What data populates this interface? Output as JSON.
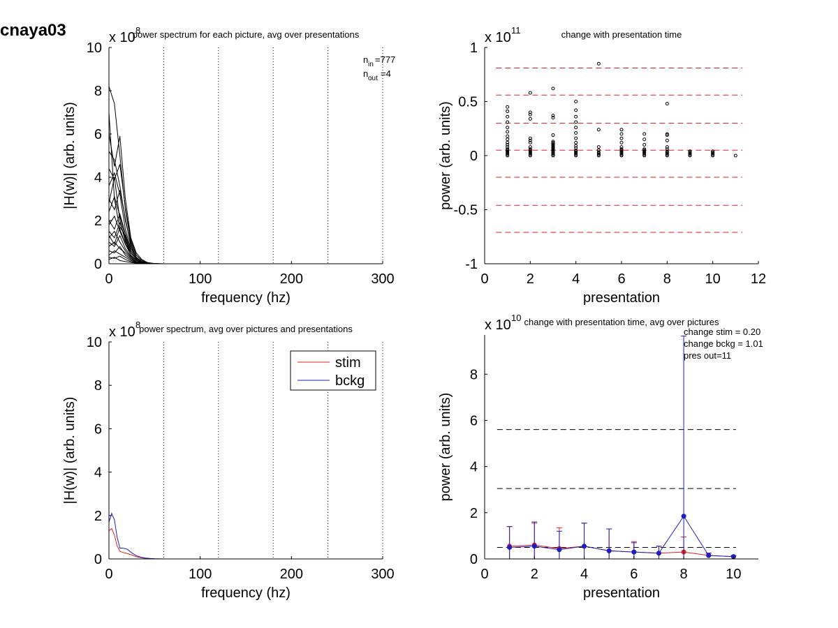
{
  "figure_title": "cnaya03",
  "chart_data": [
    {
      "id": "p1",
      "type": "line",
      "title": "power spectrum for each picture, avg over presentations",
      "xlabel": "frequency (hz)",
      "ylabel": "|H(w)| (arb. units)",
      "exponent": "x 10^8",
      "exp_base": "x 10",
      "exp_power": "8",
      "xlim": [
        0,
        300
      ],
      "ylim": [
        0,
        10
      ],
      "xticks": [
        0,
        100,
        200,
        300
      ],
      "yticks": [
        0,
        2,
        4,
        6,
        8,
        10
      ],
      "vlines": [
        60,
        120,
        180,
        240,
        300
      ],
      "annotation": {
        "n_in": "777",
        "n_out": "4",
        "n_in_label": "n",
        "n_in_sub": "in",
        "n_out_label": "n",
        "n_out_sub": "out"
      },
      "freq": [
        0,
        6,
        12,
        18,
        24,
        30,
        36,
        42,
        48,
        54,
        60,
        300
      ],
      "series_desc": "many picture spectra (black), peaks up to ~8.2 near 0-15 Hz, decaying to ~0 by 50 Hz",
      "series": [
        {
          "values": [
            8.2,
            7.4,
            5.0,
            2.5,
            1.0,
            0.4,
            0.15,
            0.05,
            0.02,
            0.01,
            0.0,
            0.0
          ]
        },
        {
          "values": [
            6.0,
            4.5,
            5.9,
            3.0,
            1.2,
            0.5,
            0.2,
            0.06,
            0.02,
            0.01,
            0.0,
            0.0
          ]
        },
        {
          "values": [
            5.2,
            4.8,
            3.6,
            2.0,
            0.9,
            0.3,
            0.1,
            0.04,
            0.01,
            0.0,
            0.0,
            0.0
          ]
        },
        {
          "values": [
            4.4,
            3.9,
            4.6,
            2.6,
            1.1,
            0.4,
            0.15,
            0.05,
            0.02,
            0.0,
            0.0,
            0.0
          ]
        },
        {
          "values": [
            3.6,
            4.2,
            3.2,
            1.6,
            0.7,
            0.3,
            0.1,
            0.03,
            0.01,
            0.0,
            0.0,
            0.0
          ]
        },
        {
          "values": [
            3.0,
            2.5,
            3.4,
            2.1,
            0.8,
            0.3,
            0.1,
            0.03,
            0.01,
            0.0,
            0.0,
            0.0
          ]
        },
        {
          "values": [
            2.4,
            3.1,
            2.2,
            1.2,
            0.5,
            0.2,
            0.08,
            0.02,
            0.01,
            0.0,
            0.0,
            0.0
          ]
        },
        {
          "values": [
            2.0,
            1.6,
            2.3,
            1.4,
            0.6,
            0.25,
            0.1,
            0.03,
            0.01,
            0.0,
            0.0,
            0.0
          ]
        },
        {
          "values": [
            1.8,
            2.2,
            1.5,
            0.9,
            0.4,
            0.15,
            0.06,
            0.02,
            0.0,
            0.0,
            0.0,
            0.0
          ]
        },
        {
          "values": [
            1.5,
            1.2,
            1.9,
            1.1,
            0.5,
            0.2,
            0.07,
            0.02,
            0.0,
            0.0,
            0.0,
            0.0
          ]
        },
        {
          "values": [
            1.2,
            1.5,
            1.0,
            0.6,
            0.3,
            0.1,
            0.05,
            0.01,
            0.0,
            0.0,
            0.0,
            0.0
          ]
        },
        {
          "values": [
            1.0,
            0.8,
            1.3,
            0.7,
            0.35,
            0.15,
            0.05,
            0.02,
            0.0,
            0.0,
            0.0,
            0.0
          ]
        },
        {
          "values": [
            0.8,
            1.0,
            0.7,
            0.5,
            0.25,
            0.1,
            0.04,
            0.01,
            0.0,
            0.0,
            0.0,
            0.0
          ]
        },
        {
          "values": [
            0.6,
            0.5,
            0.8,
            0.4,
            0.2,
            0.08,
            0.03,
            0.01,
            0.0,
            0.0,
            0.0,
            0.0
          ]
        },
        {
          "values": [
            0.4,
            0.6,
            0.45,
            0.3,
            0.15,
            0.06,
            0.02,
            0.01,
            0.0,
            0.0,
            0.0,
            0.0
          ]
        },
        {
          "values": [
            0.3,
            0.25,
            0.35,
            0.2,
            0.1,
            0.05,
            0.02,
            0.0,
            0.0,
            0.0,
            0.0,
            0.0
          ]
        },
        {
          "values": [
            0.2,
            0.3,
            0.15,
            0.1,
            0.06,
            0.03,
            0.01,
            0.0,
            0.0,
            0.0,
            0.0,
            0.0
          ]
        },
        {
          "values": [
            7.0,
            3.0,
            1.6,
            0.9,
            0.5,
            0.2,
            0.08,
            0.02,
            0.01,
            0.0,
            0.0,
            0.0
          ]
        },
        {
          "values": [
            2.8,
            4.0,
            2.0,
            1.0,
            0.5,
            0.2,
            0.06,
            0.02,
            0.0,
            0.0,
            0.0,
            0.0
          ]
        },
        {
          "values": [
            1.3,
            0.9,
            1.7,
            1.3,
            0.6,
            0.25,
            0.1,
            0.03,
            0.01,
            0.0,
            0.0,
            0.0
          ]
        }
      ]
    },
    {
      "id": "p2",
      "type": "scatter",
      "title": "change with presentation time",
      "xlabel": "presentation",
      "ylabel": "power (arb. units)",
      "exponent": "x 10^11",
      "exp_base": "x 10",
      "exp_power": "11",
      "xlim": [
        0,
        12
      ],
      "ylim": [
        -1,
        1
      ],
      "xticks": [
        0,
        2,
        4,
        6,
        8,
        10,
        12
      ],
      "yticks": [
        -1,
        -0.5,
        0,
        0.5,
        1
      ],
      "ytick_labels": [
        "-1",
        "-0.5",
        "0",
        "0.5",
        "1"
      ],
      "hlines": [
        0.81,
        0.56,
        0.3,
        0.05,
        -0.2,
        -0.46,
        -0.71
      ],
      "hline_color": "#e0201e",
      "points": [
        {
          "x": 1,
          "y": [
            0.45,
            0.41,
            0.36,
            0.31,
            0.26,
            0.22,
            0.18,
            0.15,
            0.12,
            0.1,
            0.08,
            0.06,
            0.05,
            0.04,
            0.03,
            0.02,
            0.01,
            0.0
          ]
        },
        {
          "x": 2,
          "y": [
            0.58,
            0.4,
            0.38,
            0.34,
            0.16,
            0.14,
            0.12,
            0.08,
            0.06,
            0.05,
            0.04,
            0.03,
            0.02,
            0.01,
            0.0
          ]
        },
        {
          "x": 3,
          "y": [
            0.62,
            0.37,
            0.35,
            0.19,
            0.13,
            0.12,
            0.11,
            0.1,
            0.09,
            0.08,
            0.07,
            0.06,
            0.05,
            0.04,
            0.03,
            0.02,
            0.01,
            0.0
          ]
        },
        {
          "x": 4,
          "y": [
            0.5,
            0.42,
            0.36,
            0.31,
            0.26,
            0.21,
            0.16,
            0.12,
            0.09,
            0.07,
            0.05,
            0.04,
            0.03,
            0.02,
            0.01,
            0.0
          ]
        },
        {
          "x": 5,
          "y": [
            0.85,
            0.24,
            0.08,
            0.05,
            0.03,
            0.02,
            0.01,
            0.0
          ]
        },
        {
          "x": 6,
          "y": [
            0.24,
            0.2,
            0.16,
            0.12,
            0.08,
            0.06,
            0.05,
            0.04,
            0.03,
            0.02,
            0.01,
            0.0
          ]
        },
        {
          "x": 7,
          "y": [
            0.2,
            0.15,
            0.1,
            0.06,
            0.05,
            0.04,
            0.03,
            0.02,
            0.01,
            0.0
          ]
        },
        {
          "x": 8,
          "y": [
            0.48,
            0.2,
            0.19,
            0.14,
            0.08,
            0.06,
            0.04,
            0.03,
            0.02,
            0.01,
            0.0
          ]
        },
        {
          "x": 9,
          "y": [
            0.04,
            0.03,
            0.02,
            0.01,
            0.0
          ]
        },
        {
          "x": 10,
          "y": [
            0.04,
            0.03,
            0.02,
            0.01,
            0.0
          ]
        },
        {
          "x": 11,
          "y": [
            0.0
          ]
        }
      ]
    },
    {
      "id": "p3",
      "type": "line",
      "title": "power spectrum, avg over pictures and presentations",
      "xlabel": "frequency (hz)",
      "ylabel": "|H(w)| (arb. units)",
      "exponent": "x 10^8",
      "exp_base": "x 10",
      "exp_power": "8",
      "xlim": [
        0,
        300
      ],
      "ylim": [
        0,
        10
      ],
      "xticks": [
        0,
        100,
        200,
        300
      ],
      "yticks": [
        0,
        2,
        4,
        6,
        8,
        10
      ],
      "vlines": [
        60,
        120,
        180,
        240,
        300
      ],
      "legend": {
        "position": "top-right"
      },
      "series": [
        {
          "name": "stim",
          "color": "#e0201e",
          "x": [
            0,
            3,
            6,
            9,
            12,
            15,
            20,
            25,
            30,
            35,
            40,
            45,
            50,
            60,
            300
          ],
          "values": [
            1.3,
            1.4,
            1.1,
            0.6,
            0.35,
            0.3,
            0.25,
            0.18,
            0.1,
            0.06,
            0.03,
            0.02,
            0.01,
            0.0,
            0.0
          ]
        },
        {
          "name": "bckg",
          "color": "#1f1fbf",
          "x": [
            0,
            3,
            6,
            9,
            12,
            15,
            20,
            25,
            30,
            35,
            40,
            45,
            50,
            60,
            300
          ],
          "values": [
            1.7,
            2.1,
            1.8,
            1.0,
            0.5,
            0.5,
            0.45,
            0.28,
            0.15,
            0.08,
            0.04,
            0.02,
            0.01,
            0.0,
            0.0
          ]
        }
      ]
    },
    {
      "id": "p4",
      "type": "line",
      "title": "change with presentation time, avg over pictures",
      "xlabel": "presentation",
      "ylabel": "power (arb. units)",
      "exponent": "x 10^10",
      "exp_base": "x 10",
      "exp_power": "10",
      "xlim": [
        0,
        11
      ],
      "ylim": [
        0,
        9.7
      ],
      "xticks": [
        0,
        2,
        4,
        6,
        8,
        10
      ],
      "yticks": [
        0,
        2,
        4,
        6,
        8
      ],
      "hlines": [
        5.6,
        3.05,
        0.5
      ],
      "hline_color": "#000000",
      "annotations": [
        "change stim = 0.20",
        "change bckg = 1.01",
        "pres out=11"
      ],
      "x": [
        1,
        2,
        3,
        4,
        5,
        6,
        7,
        8,
        9,
        10
      ],
      "series": [
        {
          "name": "stim",
          "color": "#e0201e",
          "values": [
            0.55,
            0.6,
            0.45,
            0.55,
            0.35,
            0.3,
            0.25,
            0.3,
            0.15,
            0.1
          ],
          "err": [
            0.85,
            0.95,
            0.9,
            1.0,
            0.95,
            0.45,
            0.3,
            0.65,
            0.1,
            0.05
          ]
        },
        {
          "name": "bckg",
          "color": "#1f1fbf",
          "values": [
            0.5,
            0.55,
            0.4,
            0.55,
            0.35,
            0.3,
            0.25,
            1.85,
            0.15,
            0.1
          ],
          "err": [
            0.9,
            1.05,
            0.8,
            1.0,
            0.95,
            0.4,
            0.3,
            7.8,
            0.1,
            0.05
          ]
        }
      ]
    }
  ]
}
